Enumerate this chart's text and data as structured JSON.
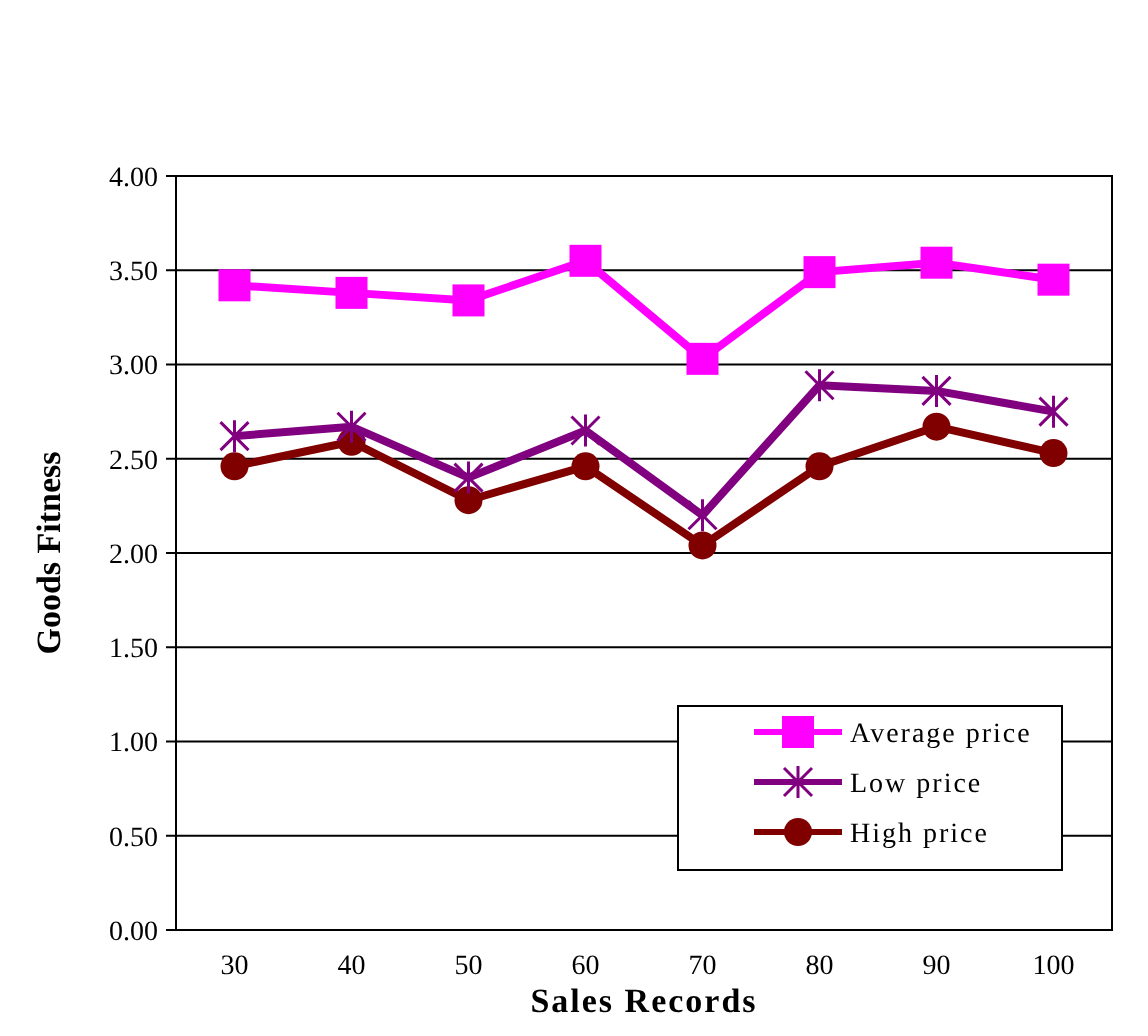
{
  "chart_data": {
    "type": "line",
    "xlabel": "Sales Records",
    "ylabel": "Goods Fitness",
    "categories": [
      "30",
      "40",
      "50",
      "60",
      "70",
      "80",
      "90",
      "100"
    ],
    "series": [
      {
        "name": "Average price",
        "color": "#ff00ff",
        "marker": "square",
        "values": [
          3.42,
          3.38,
          3.34,
          3.55,
          3.03,
          3.49,
          3.54,
          3.45
        ]
      },
      {
        "name": "Low price",
        "color": "#800080",
        "marker": "cross",
        "values": [
          2.62,
          2.67,
          2.4,
          2.65,
          2.2,
          2.89,
          2.86,
          2.75
        ]
      },
      {
        "name": "High price",
        "color": "#800000",
        "marker": "circle",
        "values": [
          2.46,
          2.59,
          2.28,
          2.46,
          2.04,
          2.46,
          2.67,
          2.53
        ]
      }
    ],
    "ylim": [
      0,
      4
    ],
    "yticks": [
      {
        "value": 0,
        "label": "0.00"
      },
      {
        "value": 0.5,
        "label": "0.50"
      },
      {
        "value": 1,
        "label": "1.00"
      },
      {
        "value": 1.5,
        "label": "1.50"
      },
      {
        "value": 2,
        "label": "2.00"
      },
      {
        "value": 2.5,
        "label": "2.50"
      },
      {
        "value": 3,
        "label": "3.00"
      },
      {
        "value": 3.5,
        "label": "3.50"
      },
      {
        "value": 4,
        "label": "4.00"
      }
    ],
    "grid": "y",
    "legend": "bottom right",
    "line_style": "solid"
  }
}
